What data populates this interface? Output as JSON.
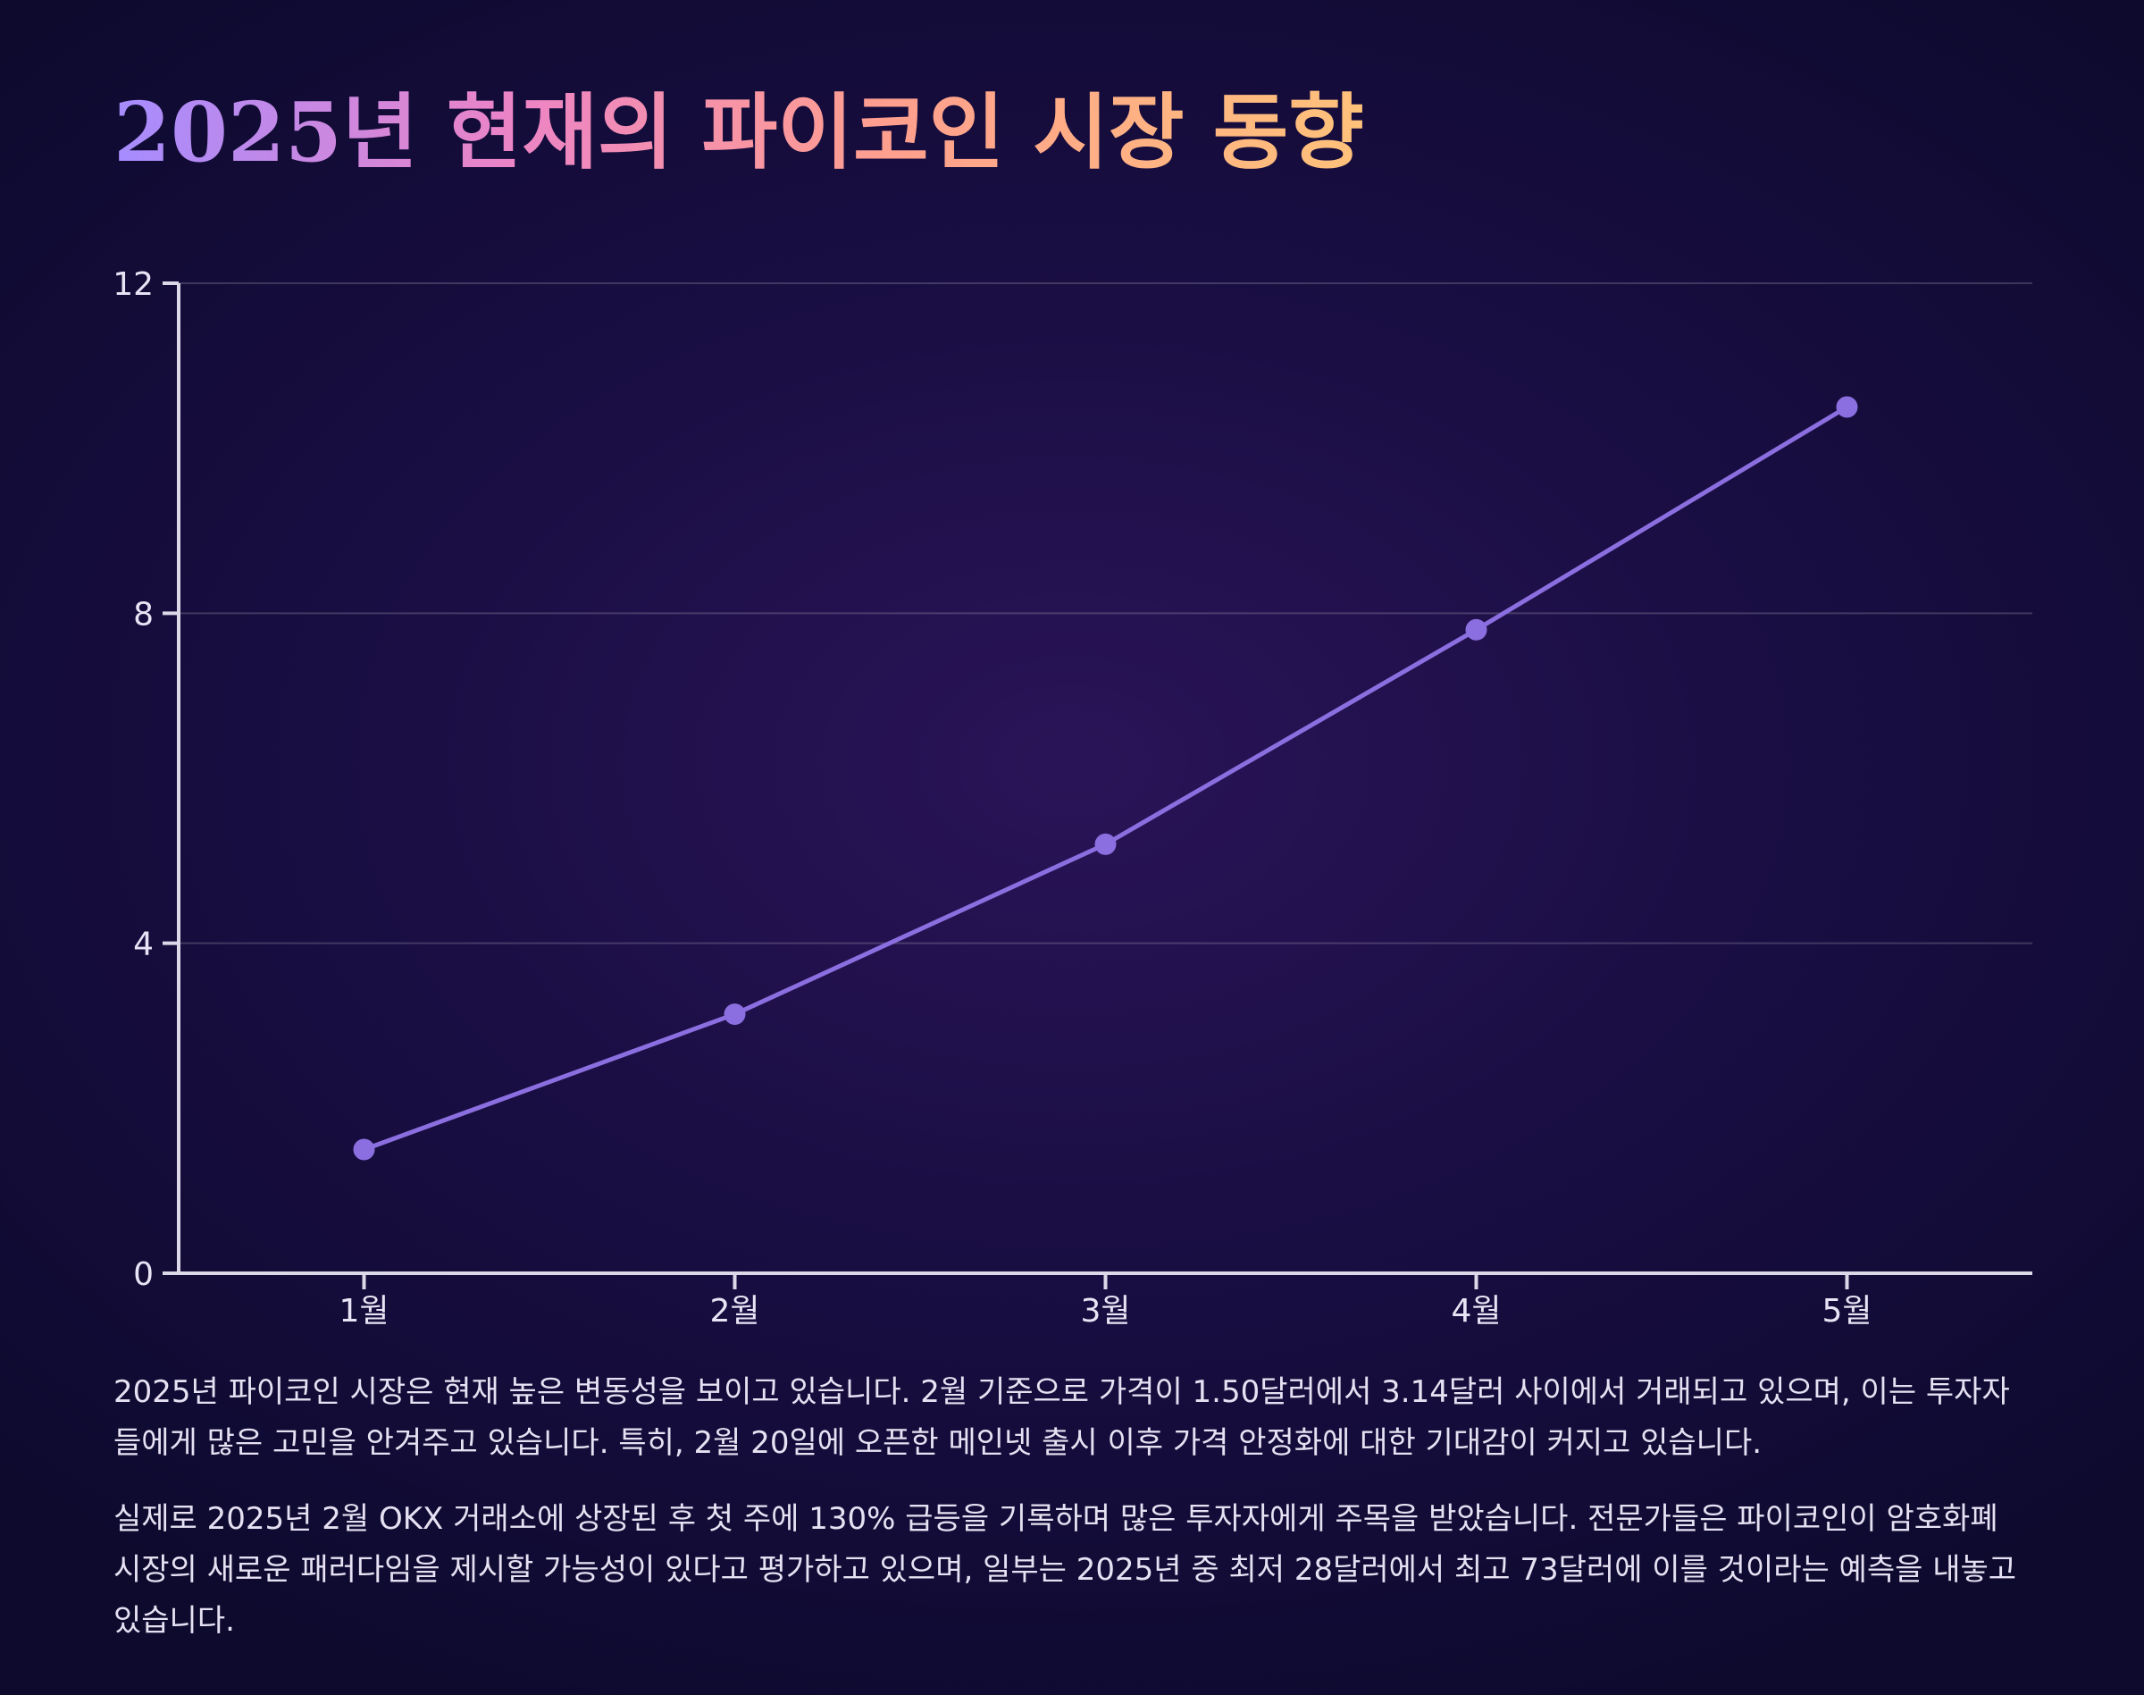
{
  "page": {
    "title": "2025년 현재의 파이코인 시장 동향",
    "paragraphs": [
      "2025년 파이코인 시장은 현재 높은 변동성을 보이고 있습니다. 2월 기준으로 가격이 1.50달러에서 3.14달러 사이에서 거래되고 있으며, 이는 투자자들에게 많은 고민을 안겨주고 있습니다. 특히, 2월 20일에 오픈한 메인넷 출시 이후 가격 안정화에 대한 기대감이 커지고 있습니다.",
      "실제로 2025년 2월 OKX 거래소에 상장된 후 첫 주에 130% 급등을 기록하며 많은 투자자에게 주목을 받았습니다. 전문가들은 파이코인이 암호화폐 시장의 새로운 패러다임을 제시할 가능성이 있다고 평가하고 있으며, 일부는 2025년 중 최저 28달러에서 최고 73달러에 이를 것이라는 예측을 내놓고 있습니다."
    ]
  },
  "chart_data": {
    "type": "line",
    "categories": [
      "1월",
      "2월",
      "3월",
      "4월",
      "5월"
    ],
    "series": [
      {
        "values": [
          1.5,
          3.14,
          5.2,
          7.8,
          10.5
        ]
      }
    ],
    "ylim": [
      0,
      12
    ],
    "yticks": [
      "0",
      "4",
      "8",
      "12"
    ],
    "grid": true,
    "colors": {
      "line": "#8b6fe0",
      "marker": "#8b6fe0",
      "axis": "#ddd8e8",
      "grid": "rgba(255,255,255,0.18)",
      "tick_text": "#e9e4f5"
    }
  }
}
